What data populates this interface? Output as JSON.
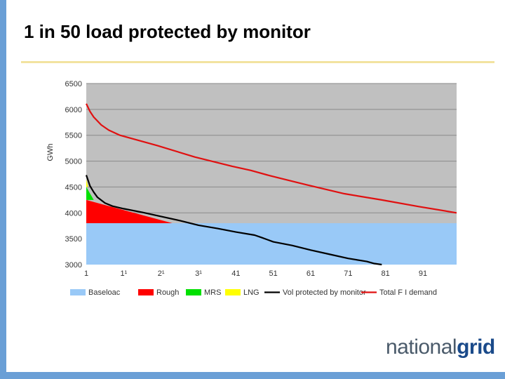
{
  "slide": {
    "title": "1 in 50 load protected by monitor"
  },
  "logo": {
    "part1": "national",
    "part2": "grid"
  },
  "colors": {
    "accent_bar": "#6a9fd6",
    "title_rule": "#f2e3a0",
    "plot_background": "#c0c0c0",
    "gridline": "#8a8a8a",
    "baseload": "#99c9f7",
    "rough": "#ff0000",
    "mrs": "#00e000",
    "lng": "#ffff00",
    "monitor_line": "#000000",
    "demand_line": "#e01010"
  },
  "chart_data": {
    "type": "area",
    "title": "",
    "xlabel": "",
    "ylabel": "GWh",
    "xlim": [
      1,
      100
    ],
    "ylim": [
      3000,
      6500
    ],
    "grid": true,
    "ytick_labels": [
      "3000",
      "3500",
      "4000",
      "4500",
      "5000",
      "5500",
      "6000",
      "6500"
    ],
    "xtick_labels": [
      "1",
      "1¹",
      "2¹",
      "3¹",
      "41",
      "51",
      "61",
      "71",
      "81",
      "91"
    ],
    "legend_position": "bottom",
    "legend": [
      "Baseloac",
      "Rough",
      "MRS",
      "LNG",
      "Vol protected by monitor",
      "Total F  I demand"
    ],
    "series": [
      {
        "name": "Baseloac",
        "kind": "area",
        "x": [
          1,
          100
        ],
        "y": [
          3800,
          3800
        ]
      },
      {
        "name": "Rough",
        "kind": "area",
        "x": [
          1,
          24
        ],
        "y_bottom": [
          3800,
          3800
        ],
        "y_top": [
          4250,
          3800
        ]
      },
      {
        "name": "MRS",
        "kind": "area",
        "x": [
          1,
          3
        ],
        "y_bottom": [
          4250,
          4250
        ],
        "y_top": [
          4500,
          4250
        ]
      },
      {
        "name": "LNG",
        "kind": "area",
        "x": [
          1,
          1.5
        ],
        "y_bottom": [
          4500,
          4500
        ],
        "y_top": [
          4650,
          4500
        ]
      },
      {
        "name": "Vol protected by monitor",
        "kind": "line",
        "x": [
          1,
          2,
          3,
          4,
          6,
          8,
          11,
          16,
          21,
          26,
          31,
          36,
          41,
          46,
          48,
          51,
          56,
          61,
          66,
          71,
          76,
          78,
          80
        ],
        "y": [
          4730,
          4520,
          4400,
          4300,
          4190,
          4130,
          4080,
          4010,
          3930,
          3850,
          3760,
          3700,
          3630,
          3570,
          3520,
          3440,
          3370,
          3280,
          3200,
          3120,
          3060,
          3020,
          3000
        ]
      },
      {
        "name": "Total F  I demand",
        "kind": "line",
        "x": [
          1,
          2,
          3,
          5,
          7,
          10,
          15,
          20,
          30,
          40,
          45,
          50,
          60,
          70,
          80,
          90,
          100
        ],
        "y": [
          6110,
          5960,
          5850,
          5700,
          5600,
          5500,
          5400,
          5300,
          5080,
          4900,
          4820,
          4720,
          4540,
          4370,
          4250,
          4120,
          4000
        ]
      }
    ]
  }
}
